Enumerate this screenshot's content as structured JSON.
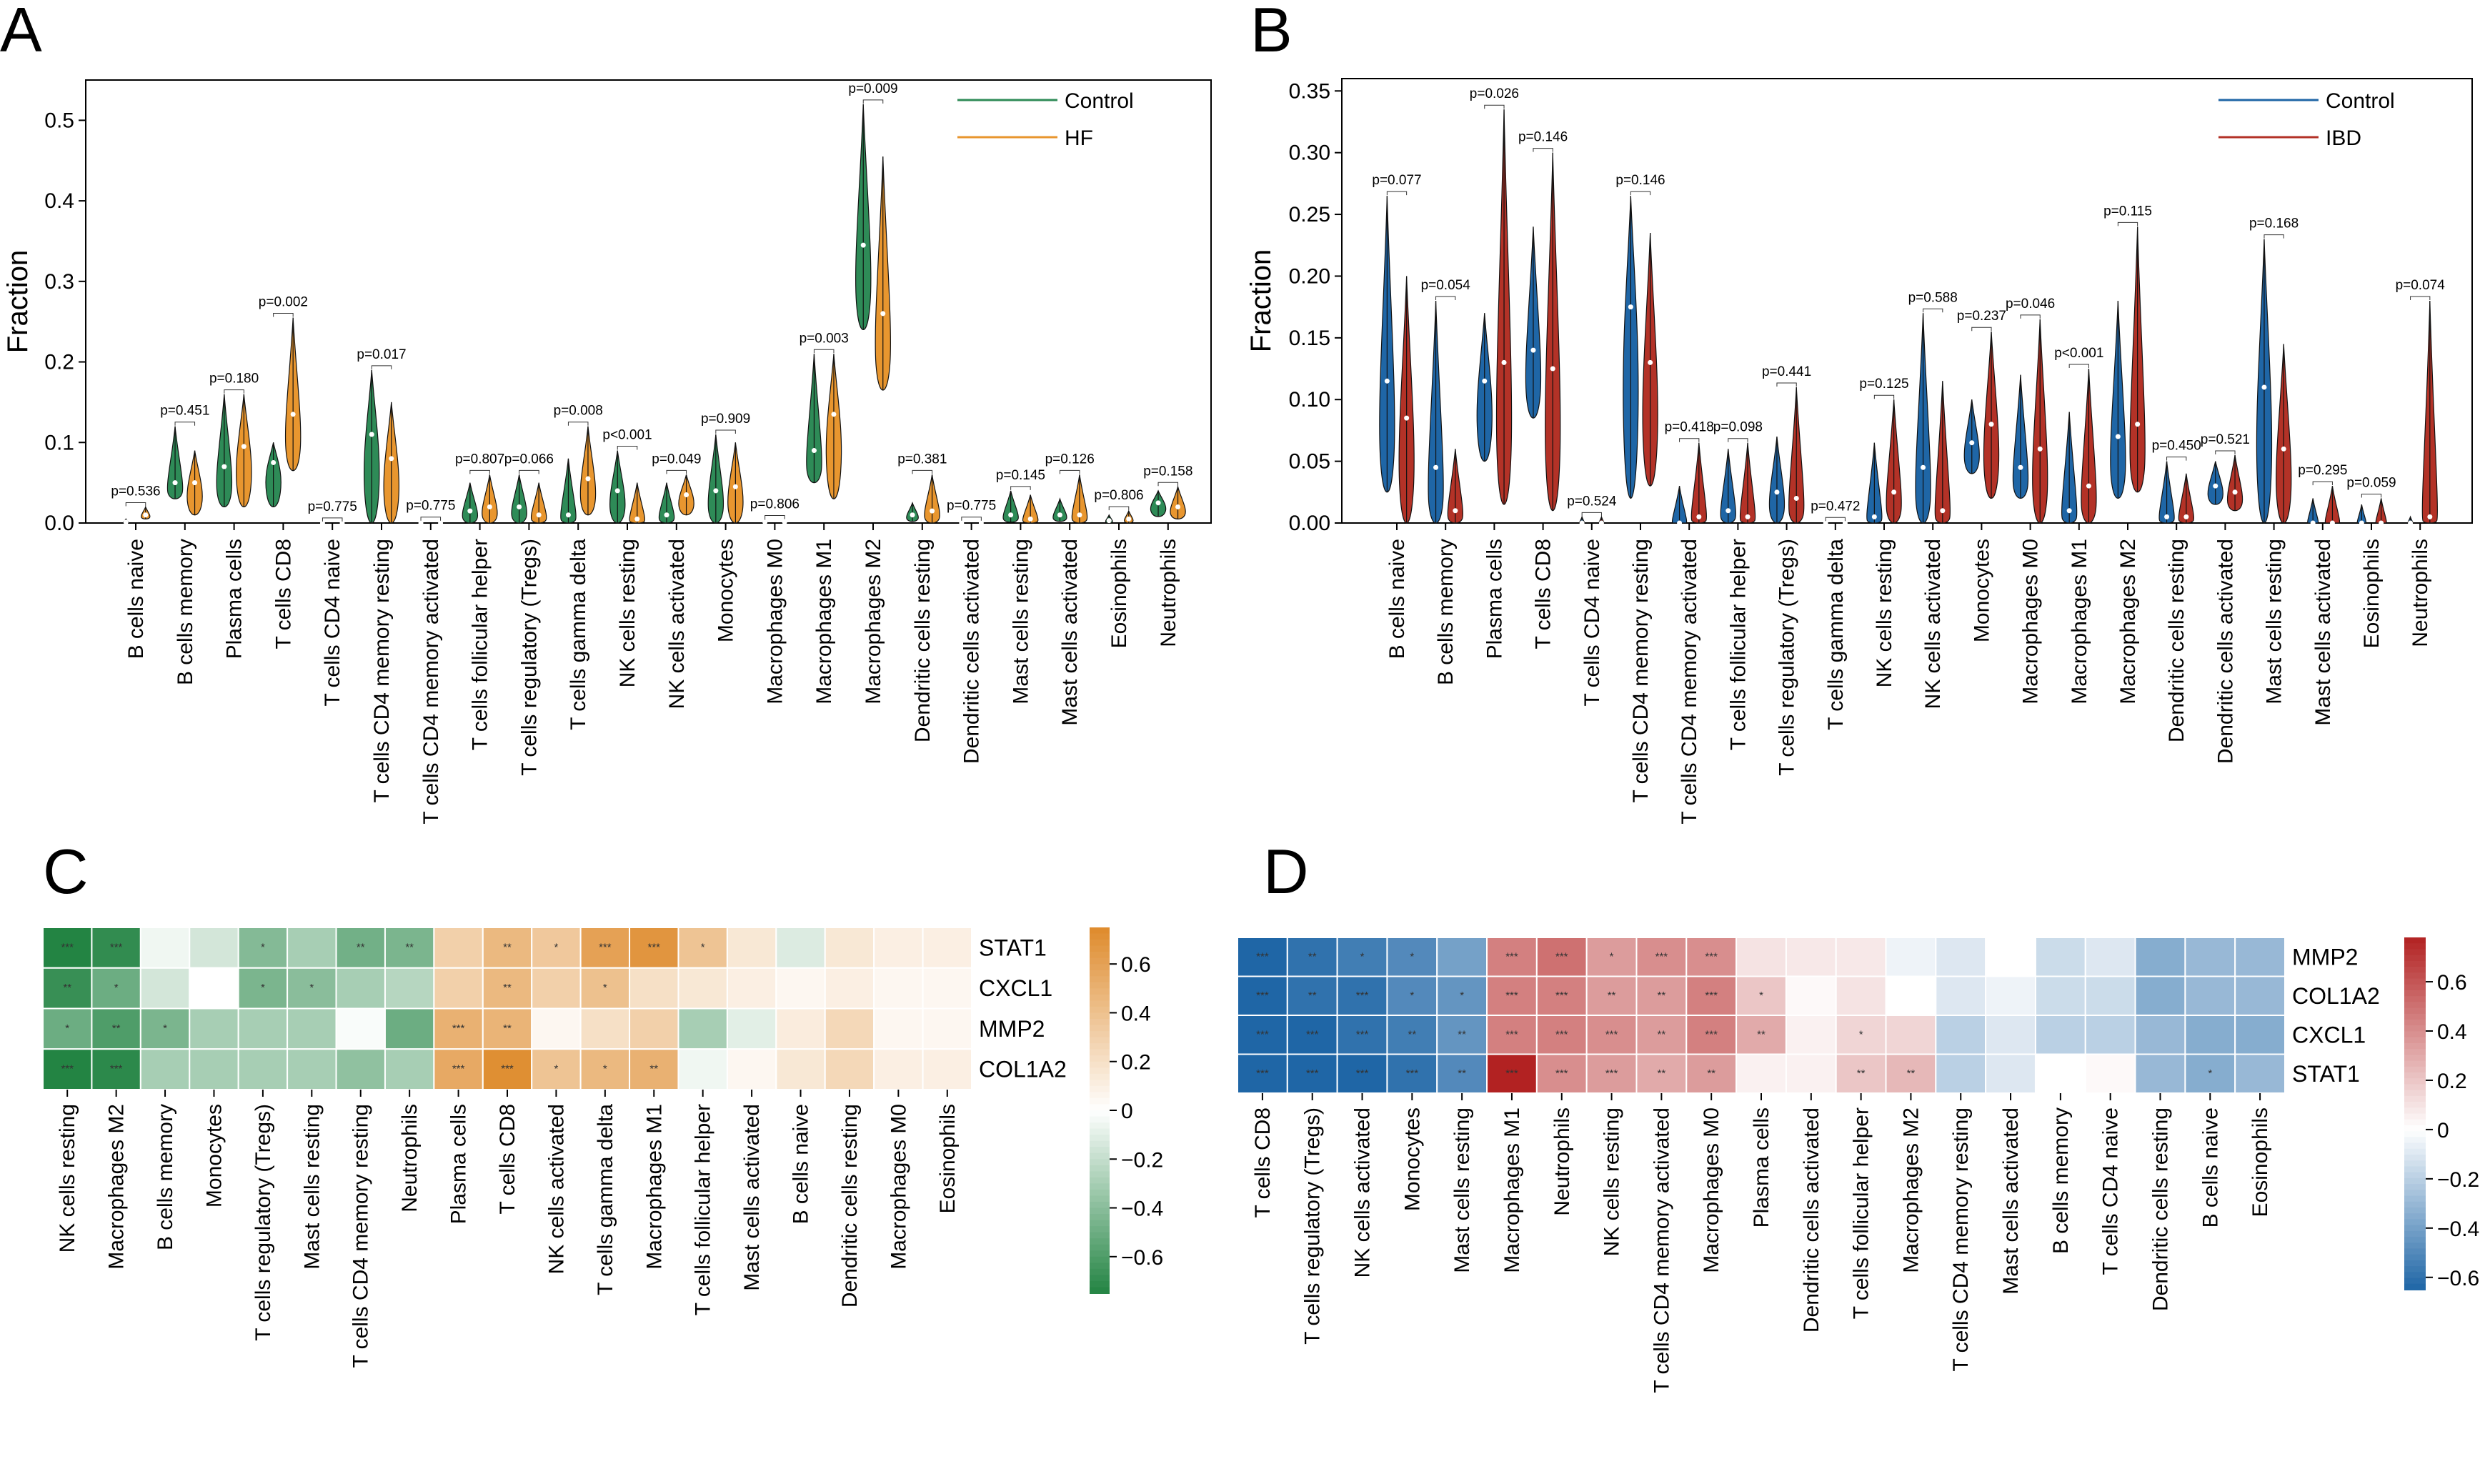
{
  "chart_data": [
    {
      "panel": "A",
      "type": "violin",
      "ylabel": "Fraction",
      "ylim": [
        0,
        0.55
      ],
      "yticks": [
        0.0,
        0.1,
        0.2,
        0.3,
        0.4,
        0.5
      ],
      "ytick_labels": [
        "0.0",
        "0.1",
        "0.2",
        "0.3",
        "0.4",
        "0.5"
      ],
      "legend": {
        "position": "top-right",
        "entries": [
          "Control",
          "HF"
        ]
      },
      "colors": {
        "group1": "#2e8b57",
        "group2": "#e8962f"
      },
      "categories": [
        "B cells naive",
        "B cells memory",
        "Plasma cells",
        "T cells CD8",
        "T cells CD4 naive",
        "T cells CD4 memory resting",
        "T cells CD4 memory activated",
        "T cells follicular helper",
        "T cells regulatory (Tregs)",
        "T cells gamma delta",
        "NK cells resting",
        "NK cells activated",
        "Monocytes",
        "Macrophages M0",
        "Macrophages M1",
        "Macrophages M2",
        "Dendritic cells resting",
        "Dendritic cells activated",
        "Mast cells resting",
        "Mast cells activated",
        "Eosinophils",
        "Neutrophils"
      ],
      "pvalues": [
        "p=0.536",
        "p=0.451",
        "p=0.180",
        "p=0.002",
        "p=0.775",
        "p=0.017",
        "p=0.775",
        "p=0.807",
        "p=0.066",
        "p=0.008",
        "p<0.001",
        "p=0.049",
        "p=0.909",
        "p=0.806",
        "p=0.003",
        "p=0.009",
        "p=0.381",
        "p=0.775",
        "p=0.145",
        "p=0.126",
        "p=0.806",
        "p=0.158"
      ],
      "series": [
        {
          "name": "Control",
          "min": [
            0,
            0.03,
            0.02,
            0.02,
            0,
            0,
            0,
            0,
            0,
            0,
            0,
            0,
            0,
            0,
            0.05,
            0.24,
            0.002,
            0,
            0.001,
            0.002,
            0,
            0.008
          ],
          "max": [
            0.005,
            0.12,
            0.16,
            0.1,
            0.001,
            0.19,
            0.002,
            0.05,
            0.06,
            0.08,
            0.09,
            0.05,
            0.11,
            0.004,
            0.21,
            0.52,
            0.025,
            0.002,
            0.04,
            0.03,
            0.01,
            0.04
          ],
          "median": [
            0.001,
            0.05,
            0.07,
            0.075,
            0,
            0.11,
            0,
            0.015,
            0.02,
            0.01,
            0.04,
            0.01,
            0.04,
            0.001,
            0.09,
            0.345,
            0.01,
            0,
            0.01,
            0.01,
            0.003,
            0.025
          ]
        },
        {
          "name": "HF",
          "min": [
            0.005,
            0.01,
            0.02,
            0.065,
            0,
            0,
            0,
            0,
            0,
            0.01,
            0,
            0.01,
            0,
            0,
            0.03,
            0.165,
            0,
            0,
            0,
            0,
            0,
            0.005
          ],
          "max": [
            0.02,
            0.09,
            0.16,
            0.255,
            0.001,
            0.15,
            0.002,
            0.06,
            0.05,
            0.12,
            0.05,
            0.06,
            0.1,
            0.002,
            0.21,
            0.455,
            0.06,
            0.002,
            0.035,
            0.06,
            0.015,
            0.045
          ],
          "median": [
            0.01,
            0.05,
            0.095,
            0.135,
            0,
            0.08,
            0,
            0.02,
            0.01,
            0.055,
            0.005,
            0.035,
            0.045,
            0.001,
            0.135,
            0.26,
            0.015,
            0,
            0.005,
            0.01,
            0.005,
            0.02
          ]
        }
      ]
    },
    {
      "panel": "B",
      "type": "violin",
      "ylabel": "Fraction",
      "ylim": [
        0,
        0.36
      ],
      "yticks": [
        0.0,
        0.05,
        0.1,
        0.15,
        0.2,
        0.25,
        0.3,
        0.35
      ],
      "ytick_labels": [
        "0.00",
        "0.05",
        "0.10",
        "0.15",
        "0.20",
        "0.25",
        "0.30",
        "0.35"
      ],
      "legend": {
        "position": "top-right",
        "entries": [
          "Control",
          "IBD"
        ]
      },
      "colors": {
        "group1": "#1f66a6",
        "group2": "#b33227"
      },
      "categories": [
        "B cells naive",
        "B cells memory",
        "Plasma cells",
        "T cells CD8",
        "T cells CD4 naive",
        "T cells CD4 memory resting",
        "T cells CD4 memory activated",
        "T cells follicular helper",
        "T cells regulatory (Tregs)",
        "T cells gamma delta",
        "NK cells resting",
        "NK cells activated",
        "Monocytes",
        "Macrophages M0",
        "Macrophages M1",
        "Macrophages M2",
        "Dendritic cells resting",
        "Dendritic cells activated",
        "Mast cells resting",
        "Mast cells activated",
        "Eosinophils",
        "Neutrophils"
      ],
      "pvalues": [
        "p=0.077",
        "p=0.054",
        "p=0.026",
        "p=0.146",
        "p=0.524",
        "p=0.146",
        "p=0.418",
        "p=0.098",
        "p=0.441",
        "p=0.472",
        "p=0.125",
        "p=0.588",
        "p=0.237",
        "p=0.046",
        "p<0.001",
        "p=0.115",
        "p=0.450",
        "p=0.521",
        "p=0.168",
        "p=0.295",
        "p=0.059",
        "p=0.074"
      ],
      "series": [
        {
          "name": "Control",
          "min": [
            0.025,
            0,
            0.05,
            0.085,
            0,
            0.02,
            0,
            0,
            0,
            0,
            0,
            0,
            0.04,
            0.02,
            0,
            0.02,
            0,
            0.015,
            0,
            0,
            0,
            0
          ],
          "max": [
            0.265,
            0.18,
            0.17,
            0.24,
            0.005,
            0.265,
            0.03,
            0.06,
            0.07,
            0.001,
            0.065,
            0.17,
            0.1,
            0.12,
            0.09,
            0.18,
            0.05,
            0.05,
            0.23,
            0.02,
            0.015,
            0.005
          ],
          "median": [
            0.115,
            0.045,
            0.115,
            0.14,
            0,
            0.175,
            0,
            0.01,
            0.025,
            0,
            0.005,
            0.045,
            0.065,
            0.045,
            0.01,
            0.07,
            0.005,
            0.03,
            0.11,
            0,
            0,
            0
          ]
        },
        {
          "name": "IBD",
          "min": [
            0,
            0,
            0.015,
            0.01,
            0,
            0.03,
            0,
            0,
            0,
            0,
            0,
            0,
            0.02,
            0,
            0,
            0.025,
            0,
            0.01,
            0,
            0,
            0,
            0
          ],
          "max": [
            0.2,
            0.06,
            0.335,
            0.3,
            0.005,
            0.235,
            0.065,
            0.065,
            0.11,
            0.001,
            0.1,
            0.115,
            0.155,
            0.165,
            0.125,
            0.24,
            0.04,
            0.055,
            0.145,
            0.03,
            0.02,
            0.18
          ],
          "median": [
            0.085,
            0.01,
            0.13,
            0.125,
            0,
            0.13,
            0.005,
            0.005,
            0.02,
            0,
            0.025,
            0.01,
            0.08,
            0.06,
            0.03,
            0.08,
            0.005,
            0.025,
            0.06,
            0,
            0,
            0.005
          ]
        }
      ]
    },
    {
      "panel": "C",
      "type": "heatmap",
      "rows": [
        "STAT1",
        "CXCL1",
        "MMP2",
        "COL1A2"
      ],
      "columns": [
        "NK cells resting",
        "Macrophages M2",
        "B cells memory",
        "Monocytes",
        "T cells regulatory (Tregs)",
        "Mast cells resting",
        "T cells CD4 memory resting",
        "Neutrophils",
        "Plasma cells",
        "T cells CD8",
        "NK cells activated",
        "T cells gamma delta",
        "Macrophages M1",
        "T cells follicular helper",
        "Mast cells activated",
        "B cells naive",
        "Dendritic cells resting",
        "Macrophages M0",
        "Eosinophils"
      ],
      "values": [
        [
          -0.75,
          -0.7,
          -0.05,
          -0.15,
          -0.42,
          -0.3,
          -0.48,
          -0.45,
          0.3,
          0.45,
          0.35,
          0.6,
          0.68,
          0.38,
          0.15,
          -0.12,
          0.15,
          0.1,
          0.1
        ],
        [
          -0.68,
          -0.5,
          -0.15,
          0.0,
          -0.45,
          -0.4,
          -0.3,
          -0.25,
          0.3,
          0.45,
          0.3,
          0.4,
          0.2,
          0.15,
          0.1,
          0.05,
          0.1,
          0.05,
          0.05
        ],
        [
          -0.5,
          -0.6,
          -0.45,
          -0.3,
          -0.3,
          -0.3,
          -0.02,
          -0.5,
          0.5,
          0.48,
          0.05,
          0.2,
          0.3,
          -0.3,
          -0.1,
          0.12,
          0.25,
          0.05,
          0.05
        ],
        [
          -0.78,
          -0.72,
          -0.3,
          -0.3,
          -0.3,
          -0.3,
          -0.38,
          -0.3,
          0.55,
          0.72,
          0.38,
          0.45,
          0.5,
          -0.05,
          0.05,
          0.15,
          0.25,
          0.1,
          0.1
        ]
      ],
      "stars": [
        [
          "***",
          "***",
          "",
          "",
          "*",
          "",
          "**",
          "**",
          "",
          "**",
          "*",
          "***",
          "***",
          "*",
          "",
          "",
          "",
          "",
          ""
        ],
        [
          "**",
          "*",
          "",
          "",
          "*",
          "*",
          "",
          "",
          "",
          "**",
          "",
          "*",
          "",
          "",
          "",
          "",
          "",
          "",
          ""
        ],
        [
          "*",
          "**",
          "*",
          "",
          "",
          "",
          "",
          "",
          "***",
          "**",
          "",
          "",
          "",
          "",
          "",
          "",
          "",
          "",
          ""
        ],
        [
          "***",
          "***",
          "",
          "",
          "",
          "",
          "",
          "",
          "***",
          "***",
          "*",
          "*",
          "**",
          "",
          "",
          "",
          "",
          "",
          ""
        ]
      ],
      "colorbar": {
        "ticks": [
          0.6,
          0.4,
          0.2,
          0,
          -0.2,
          -0.4,
          -0.6
        ],
        "tick_labels": [
          "0.6",
          "0.4",
          "0.2",
          "0",
          "−0.2",
          "−0.4",
          "−0.6"
        ],
        "range": [
          -0.75,
          0.75
        ]
      },
      "colors": {
        "low": "#238443",
        "mid": "#ffffff",
        "high": "#de8a2b"
      }
    },
    {
      "panel": "D",
      "type": "heatmap",
      "rows": [
        "MMP2",
        "COL1A2",
        "CXCL1",
        "STAT1"
      ],
      "columns": [
        "T cells CD8",
        "T cells regulatory (Tregs)",
        "NK cells activated",
        "Monocytes",
        "Mast cells resting",
        "Macrophages M1",
        "Neutrophils",
        "NK cells resting",
        "T cells CD4 memory activated",
        "Macrophages M0",
        "Plasma cells",
        "Dendritic cells activated",
        "T cells follicular helper",
        "Macrophages M2",
        "T cells CD4 memory resting",
        "Mast cells activated",
        "B cells memory",
        "T cells CD4 naive",
        "Dendritic cells resting",
        "B cells naive",
        "Eosinophils"
      ],
      "values": [
        [
          -0.7,
          -0.6,
          -0.55,
          -0.5,
          -0.4,
          0.45,
          0.5,
          0.35,
          0.4,
          0.4,
          0.1,
          0.08,
          0.08,
          -0.05,
          -0.1,
          0.0,
          -0.15,
          -0.1,
          -0.35,
          -0.3,
          -0.3
        ],
        [
          -0.7,
          -0.6,
          -0.6,
          -0.5,
          -0.45,
          0.45,
          0.45,
          0.35,
          0.35,
          0.45,
          0.2,
          0.02,
          0.1,
          0.0,
          -0.1,
          -0.05,
          -0.15,
          -0.15,
          -0.35,
          -0.3,
          -0.3
        ],
        [
          -0.7,
          -0.65,
          -0.6,
          -0.55,
          -0.45,
          0.45,
          0.45,
          0.4,
          0.35,
          0.45,
          0.3,
          0.05,
          0.15,
          0.15,
          -0.2,
          -0.1,
          -0.2,
          -0.2,
          -0.3,
          -0.35,
          -0.35
        ],
        [
          -0.72,
          -0.65,
          -0.65,
          -0.6,
          -0.5,
          0.8,
          0.4,
          0.35,
          0.3,
          0.35,
          0.05,
          0.05,
          0.2,
          0.25,
          -0.2,
          -0.1,
          0.0,
          0.02,
          -0.3,
          -0.35,
          -0.3
        ]
      ],
      "stars": [
        [
          "***",
          "**",
          "*",
          "*",
          "",
          "***",
          "***",
          "*",
          "***",
          "***",
          "",
          "",
          "",
          "",
          "",
          "",
          "",
          "",
          "",
          "",
          ""
        ],
        [
          "***",
          "**",
          "***",
          "*",
          "*",
          "***",
          "***",
          "**",
          "**",
          "***",
          "*",
          "",
          "",
          "",
          "",
          "",
          "",
          "",
          "",
          "",
          ""
        ],
        [
          "***",
          "***",
          "***",
          "**",
          "**",
          "***",
          "***",
          "***",
          "**",
          "***",
          "**",
          "",
          "*",
          "",
          "",
          "",
          "",
          "",
          "",
          "",
          ""
        ],
        [
          "***",
          "***",
          "***",
          "***",
          "**",
          "***",
          "***",
          "***",
          "**",
          "**",
          "",
          "",
          "**",
          "**",
          "",
          "",
          "",
          "",
          "",
          "*",
          ""
        ]
      ],
      "colorbar": {
        "ticks": [
          0.6,
          0.4,
          0.2,
          0,
          -0.2,
          -0.4,
          -0.6
        ],
        "tick_labels": [
          "0.6",
          "0.4",
          "0.2",
          "0",
          "−0.2",
          "−0.4",
          "−0.6"
        ],
        "range": [
          -0.65,
          0.78
        ]
      },
      "colors": {
        "low": "#1f66a6",
        "mid": "#ffffff",
        "high": "#b22222"
      }
    }
  ]
}
